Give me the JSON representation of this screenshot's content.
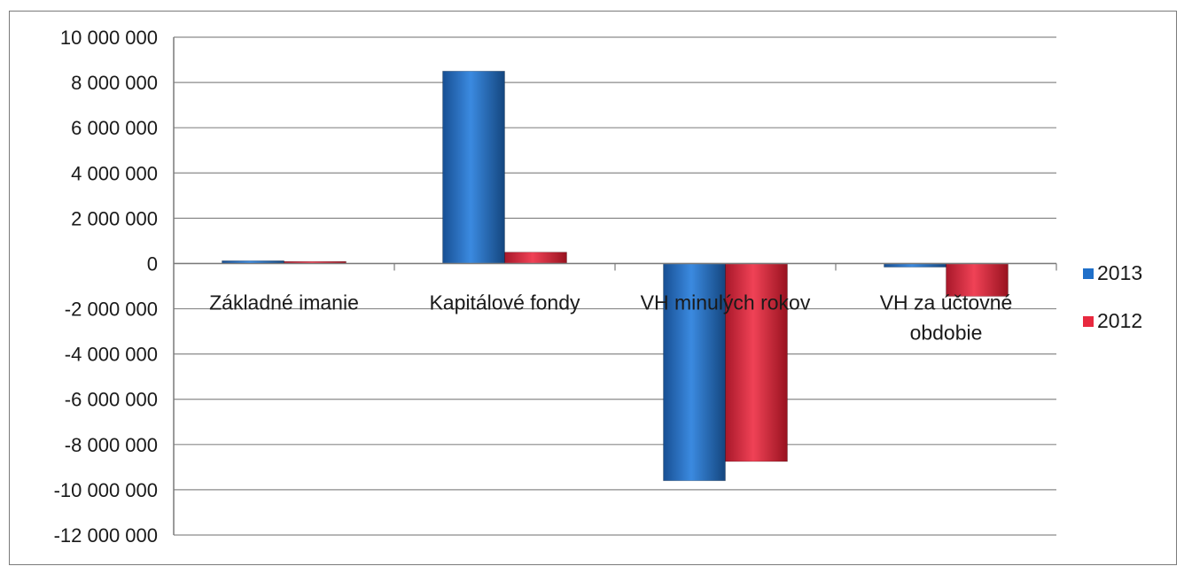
{
  "chart_data": {
    "type": "bar",
    "categories": [
      "Základné imanie",
      "Kapitálové fondy",
      "VH minulých rokov",
      "VH za účtovné obdobie"
    ],
    "category_lines": [
      [
        "Základné imanie"
      ],
      [
        "Kapitálové fondy"
      ],
      [
        "VH minulých rokov"
      ],
      [
        "VH za účtovné",
        "obdobie"
      ]
    ],
    "series": [
      {
        "name": "2013",
        "values": [
          120000,
          8500000,
          -9600000,
          -160000
        ],
        "color": "#1f6fc9"
      },
      {
        "name": "2012",
        "values": [
          90000,
          500000,
          -8750000,
          -1450000
        ],
        "color": "#e8293f"
      }
    ],
    "ylim": [
      -12000000,
      10000000
    ],
    "ytick_step": 2000000,
    "ytick_labels": [
      "10 000 000",
      "8 000 000",
      "6 000 000",
      "4 000 000",
      "2 000 000",
      "0",
      "-2 000 000",
      "-4 000 000",
      "-6 000 000",
      "-8 000 000",
      "-10 000 000",
      "-12 000 000"
    ],
    "grid": true,
    "legend": "right",
    "title": "",
    "xlabel": "",
    "ylabel": ""
  }
}
